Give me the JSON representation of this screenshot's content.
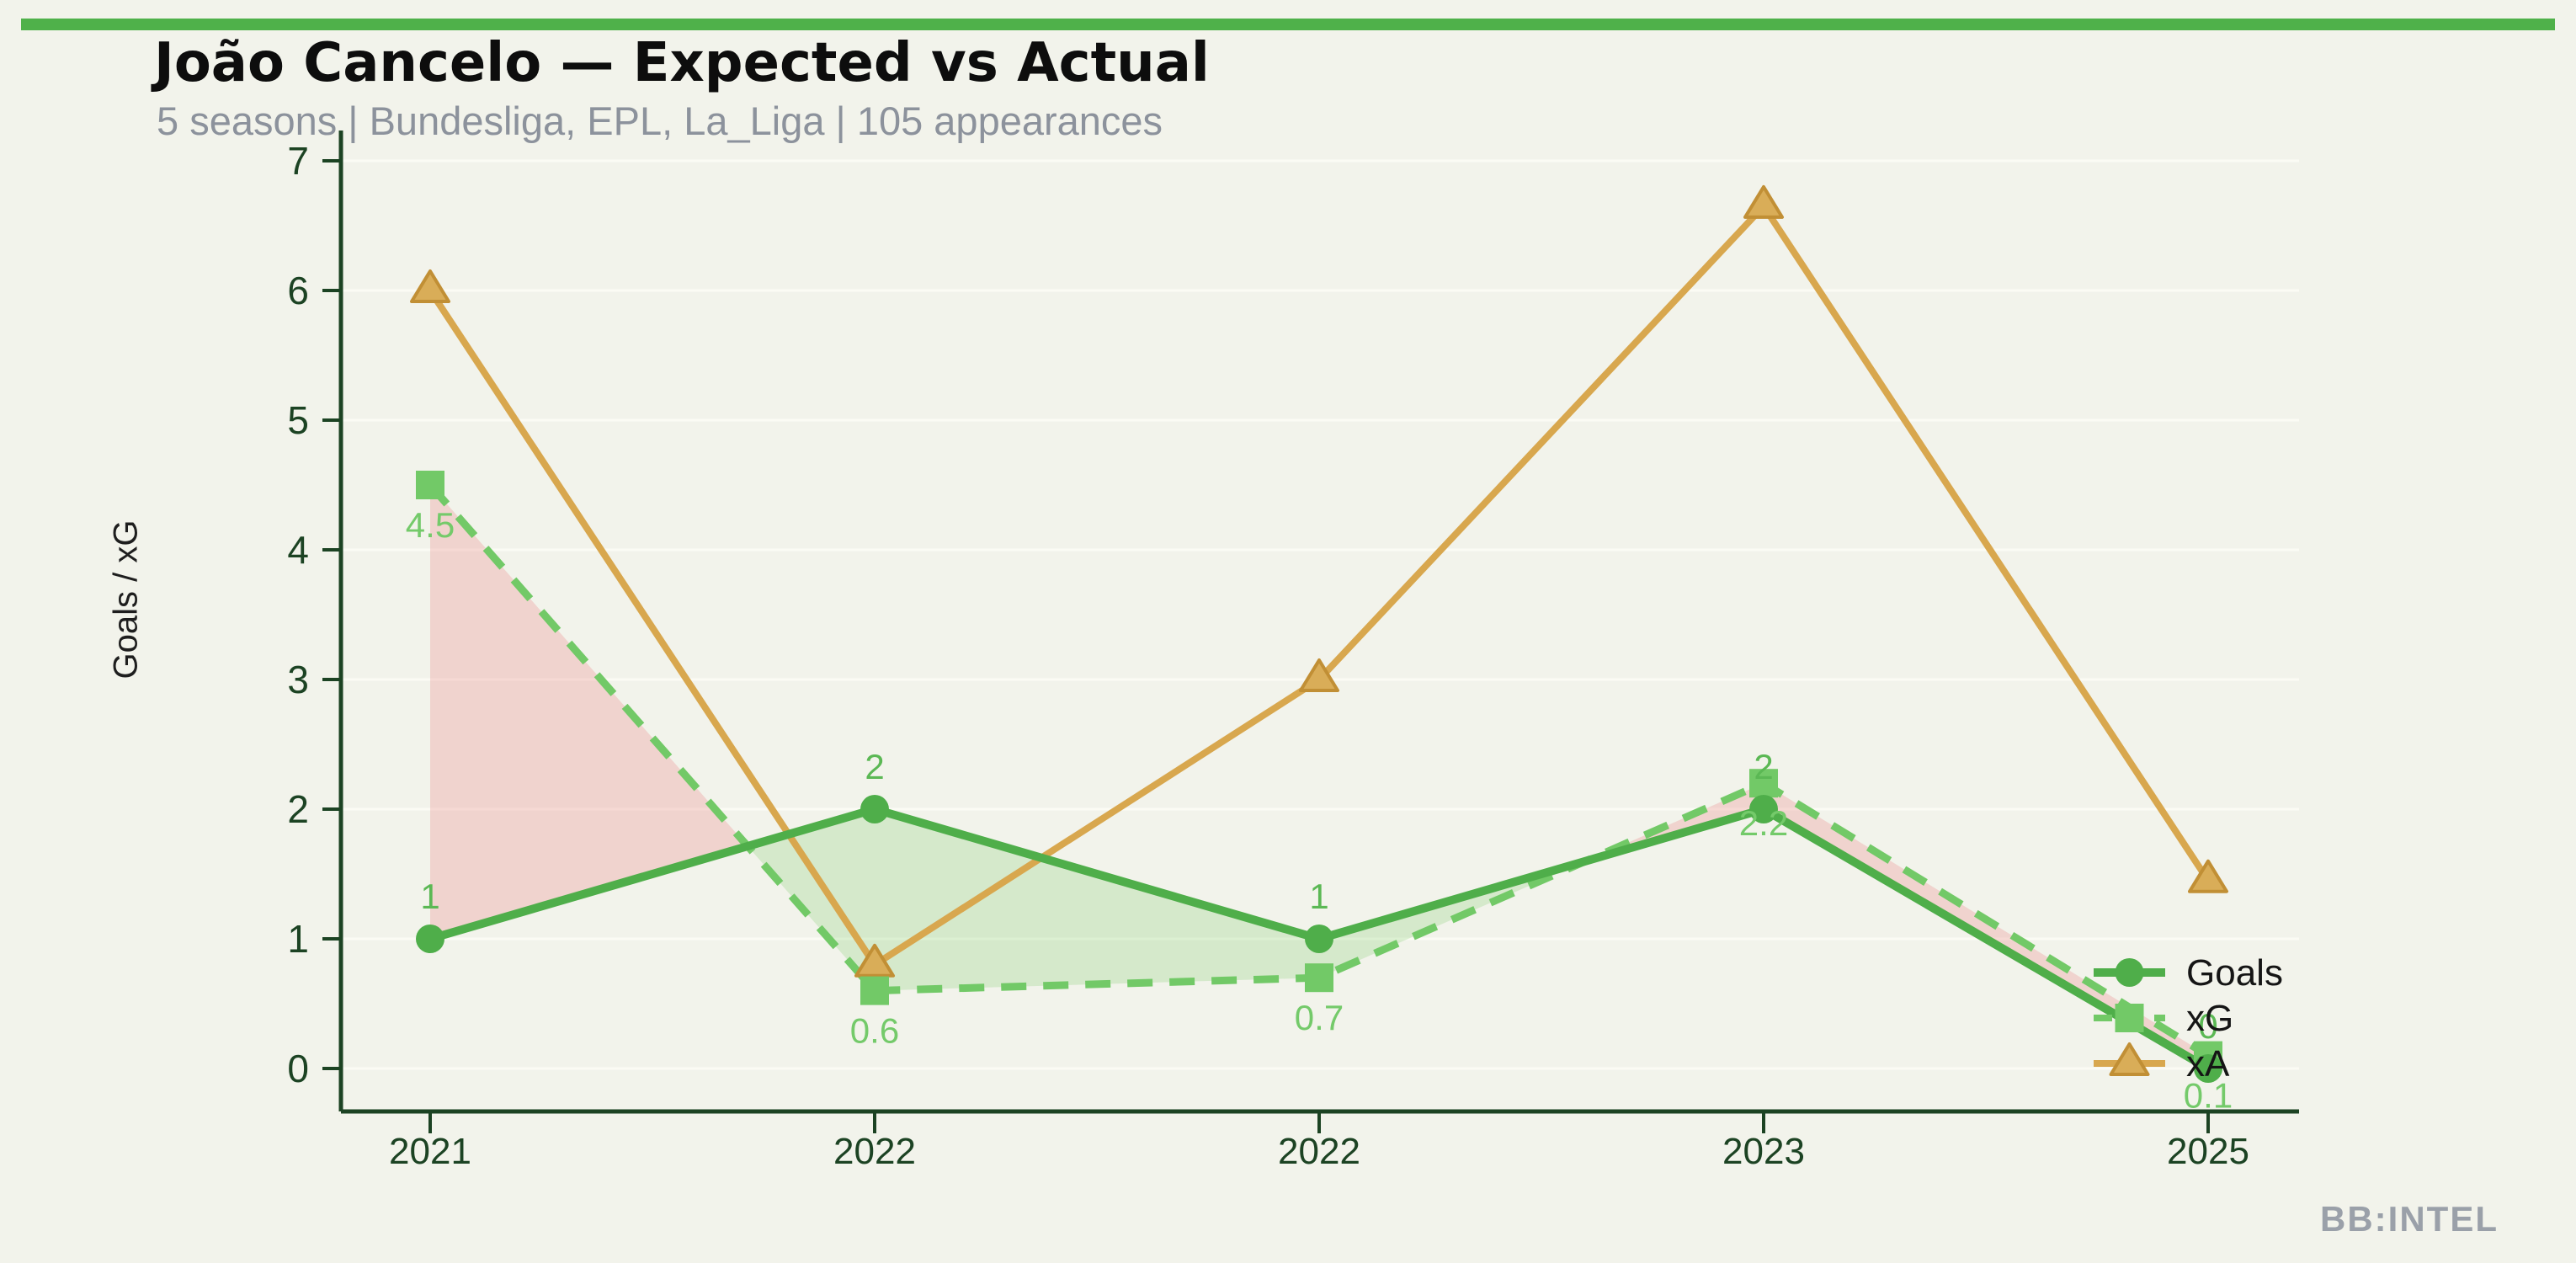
{
  "header": {
    "title": "João Cancelo — Expected vs Actual",
    "subtitle": "5 seasons | Bundesliga, EPL, La_Liga | 105 appearances"
  },
  "watermark": "BB:INTEL",
  "colors": {
    "background": "#f2f3eb",
    "top_bar": "#4fb14a",
    "title_text": "#0d0d0d",
    "subtitle_text": "#8c929c",
    "axis_dark_green": "#1c4323",
    "goals_green": "#4fae4a",
    "xg_green": "#72c967",
    "xa_tan": "#d8a74e",
    "xa_marker_fill": "#d9ad58",
    "xa_marker_edge": "#c18f35",
    "fill_over_green": "rgba(110,200,90,0.22)",
    "fill_under_pink": "rgba(235,140,140,0.30)",
    "gridline": "#fbfbf4",
    "watermark_gray": "#9aa0a9",
    "legend_text": "#151515",
    "goals_label_green": "#5bb854",
    "xg_label_green": "#74ca6a"
  },
  "chart_data": {
    "type": "line",
    "title": "João Cancelo — Expected vs Actual",
    "subtitle": "5 seasons | Bundesliga, EPL, La_Liga | 105 appearances",
    "xlabel": "",
    "ylabel": "Goals / xG",
    "categories": [
      "2021",
      "2022",
      "2022",
      "2023",
      "2025"
    ],
    "series": [
      {
        "name": "Goals",
        "marker": "circle",
        "line_style": "solid",
        "values": [
          1,
          2,
          1,
          2,
          0
        ],
        "point_labels": [
          "1",
          "2",
          "1",
          "2",
          "0"
        ]
      },
      {
        "name": "xG",
        "marker": "square",
        "line_style": "dashed",
        "values": [
          4.5,
          0.6,
          0.7,
          2.2,
          0.1
        ],
        "point_labels": [
          "4.5",
          "0.6",
          "0.7",
          "2.2",
          "0.1"
        ]
      },
      {
        "name": "xA",
        "marker": "triangle",
        "line_style": "solid",
        "values": [
          6.0,
          0.8,
          3.0,
          6.65,
          1.45
        ],
        "point_labels": []
      }
    ],
    "ylim": [
      0,
      7
    ],
    "yticks": [
      0,
      1,
      2,
      3,
      4,
      5,
      6,
      7
    ],
    "grid": true,
    "legend_position": "right-inside",
    "fill_between": {
      "upper_series": "Goals",
      "lower_series": "xG",
      "over_color_meaning": "Goals above xG (green)",
      "under_color_meaning": "xG above Goals (pink)"
    }
  }
}
